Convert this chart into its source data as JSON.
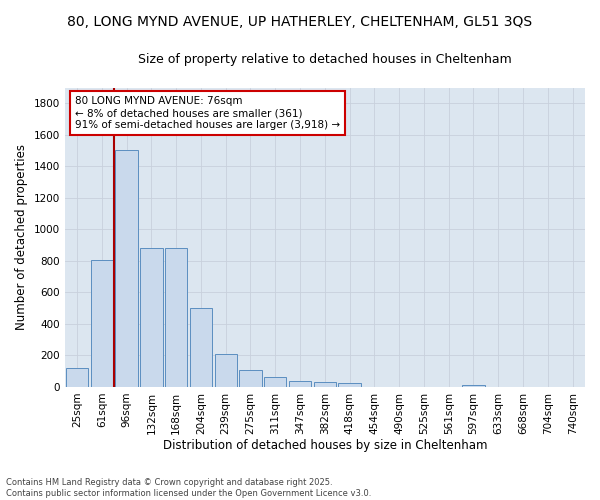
{
  "title_line1": "80, LONG MYND AVENUE, UP HATHERLEY, CHELTENHAM, GL51 3QS",
  "title_line2": "Size of property relative to detached houses in Cheltenham",
  "xlabel": "Distribution of detached houses by size in Cheltenham",
  "ylabel": "Number of detached properties",
  "footnote": "Contains HM Land Registry data © Crown copyright and database right 2025.\nContains public sector information licensed under the Open Government Licence v3.0.",
  "bar_labels": [
    "25sqm",
    "61sqm",
    "96sqm",
    "132sqm",
    "168sqm",
    "204sqm",
    "239sqm",
    "275sqm",
    "311sqm",
    "347sqm",
    "382sqm",
    "418sqm",
    "454sqm",
    "490sqm",
    "525sqm",
    "561sqm",
    "597sqm",
    "633sqm",
    "668sqm",
    "704sqm",
    "740sqm"
  ],
  "bar_values": [
    120,
    805,
    1505,
    880,
    880,
    500,
    210,
    110,
    65,
    40,
    32,
    25,
    0,
    0,
    0,
    0,
    15,
    0,
    0,
    0,
    0
  ],
  "bar_color": "#c9d9ec",
  "bar_edgecolor": "#5b8ec0",
  "vline_x": 1.5,
  "vline_color": "#aa0000",
  "annotation_text": "80 LONG MYND AVENUE: 76sqm\n← 8% of detached houses are smaller (361)\n91% of semi-detached houses are larger (3,918) →",
  "annotation_box_color": "#cc0000",
  "ylim": [
    0,
    1900
  ],
  "yticks": [
    0,
    200,
    400,
    600,
    800,
    1000,
    1200,
    1400,
    1600,
    1800
  ],
  "grid_color": "#c8d0dc",
  "bg_color": "#dce6f0",
  "title_fontsize": 10,
  "subtitle_fontsize": 9,
  "axis_fontsize": 8.5,
  "tick_fontsize": 7.5,
  "annot_fontsize": 7.5
}
